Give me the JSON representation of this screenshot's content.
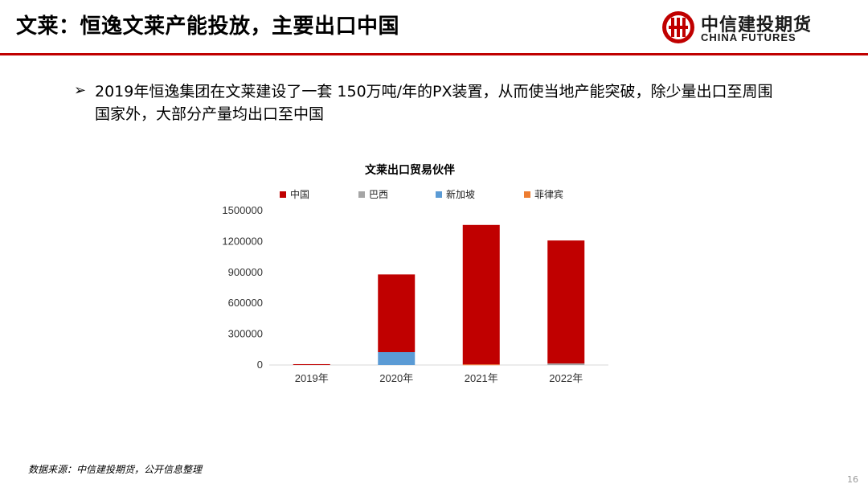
{
  "header": {
    "title": "文莱：恒逸文莱产能投放，主要出口中国",
    "logo_cn": "中信建投期货",
    "logo_en": "CHINA FUTURES",
    "accent_color": "#c00000"
  },
  "bullet": {
    "icon": "arrow-bullet-icon",
    "text": "2019年恒逸集团在文莱建设了一套 150万吨/年的PX装置，从而使当地产能突破，除少量出口至周围国家外，大部分产量均出口至中国"
  },
  "chart_data": {
    "type": "bar",
    "stacked": true,
    "title": "文莱出口贸易伙伴",
    "categories": [
      "2019年",
      "2020年",
      "2021年",
      "2022年"
    ],
    "series": [
      {
        "name": "中国",
        "color": "#c00000",
        "values": [
          8000,
          755000,
          1355000,
          1195000
        ]
      },
      {
        "name": "巴西",
        "color": "#a5a5a5",
        "values": [
          0,
          0,
          0,
          15000
        ]
      },
      {
        "name": "新加坡",
        "color": "#5b9bd5",
        "values": [
          0,
          125000,
          0,
          0
        ]
      },
      {
        "name": "菲律宾",
        "color": "#ed7d31",
        "values": [
          0,
          0,
          6000,
          0
        ]
      }
    ],
    "stack_order": [
      "新加坡",
      "菲律宾",
      "巴西",
      "中国"
    ],
    "yticks": [
      "0",
      "300000",
      "600000",
      "900000",
      "1200000",
      "1500000"
    ],
    "ylim": [
      0,
      1500000
    ],
    "grid": false,
    "legend_position": "top"
  },
  "footer": {
    "source": "数据来源：中信建投期货，公开信息整理",
    "page": "16"
  }
}
